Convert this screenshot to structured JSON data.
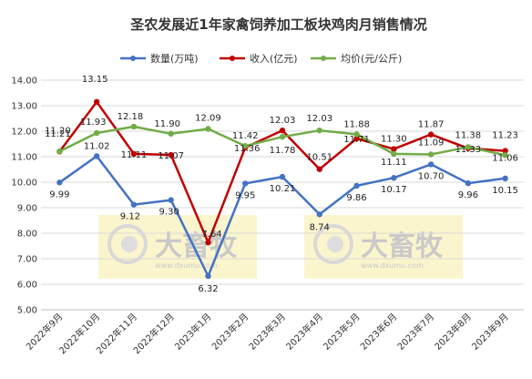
{
  "chart_data": {
    "type": "line",
    "title": "圣农发展近1年家禽饲养加工板块鸡肉月销售情况",
    "categories": [
      "2022年9月",
      "2022年10月",
      "2022年11月",
      "2022年12月",
      "2023年1月",
      "2023年2月",
      "2023年3月",
      "2023年4月",
      "2023年5月",
      "2023年6月",
      "2023年7月",
      "2023年8月",
      "2023年9月"
    ],
    "ylim": [
      5.0,
      14.0
    ],
    "yticks": [
      "5.00",
      "6.00",
      "7.00",
      "8.00",
      "9.00",
      "10.00",
      "11.00",
      "12.00",
      "13.00",
      "14.00"
    ],
    "grid": "horizontal",
    "legend_position": "top",
    "series": [
      {
        "name": "数量(万吨)",
        "color": "#4472c4",
        "values": [
          9.99,
          11.02,
          9.12,
          9.3,
          6.32,
          9.95,
          10.21,
          8.74,
          9.86,
          10.17,
          10.7,
          9.96,
          10.15
        ],
        "labels": [
          "9.99",
          "11.02",
          "9.12",
          "9.30",
          "6.32",
          "9.95",
          "10.21",
          "8.74",
          "9.86",
          "10.17",
          "10.70",
          "9.96",
          "10.15"
        ]
      },
      {
        "name": "收入(亿元)",
        "color": "#c00000",
        "values": [
          11.2,
          13.15,
          11.11,
          11.07,
          7.64,
          11.36,
          12.03,
          10.51,
          11.71,
          11.3,
          11.87,
          11.33,
          11.23
        ],
        "labels": [
          "11.20",
          "13.15",
          "11.11",
          "11.07",
          "7.64",
          "11.36",
          "12.03",
          "10.51",
          "11.71",
          "11.30",
          "11.87",
          "11.33",
          "11.23"
        ]
      },
      {
        "name": "均价(元/公斤)",
        "color": "#70ad47",
        "values": [
          11.21,
          11.93,
          12.18,
          11.9,
          12.09,
          11.42,
          11.78,
          12.03,
          11.88,
          11.11,
          11.09,
          11.38,
          11.06
        ],
        "labels": [
          "11.21",
          "11.93",
          "12.18",
          "11.90",
          "12.09",
          "11.42",
          "11.78",
          "12.03",
          "11.88",
          "11.11",
          "11.09",
          "11.38",
          "11.06"
        ]
      }
    ]
  },
  "watermark": {
    "brand": "大畜牧",
    "site": "www.dxumu.com"
  }
}
